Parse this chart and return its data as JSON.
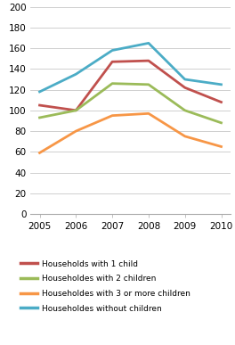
{
  "years": [
    2005,
    2006,
    2007,
    2008,
    2009,
    2010
  ],
  "series": {
    "Households with 1 child": {
      "values": [
        105,
        100,
        147,
        148,
        122,
        108
      ],
      "color": "#c0504d"
    },
    "Householdes with 2 children": {
      "values": [
        93,
        100,
        126,
        125,
        100,
        88
      ],
      "color": "#9bbb59"
    },
    "Householdes with 3 or more children": {
      "values": [
        59,
        80,
        95,
        97,
        75,
        65
      ],
      "color": "#f79646"
    },
    "Householdes without children": {
      "values": [
        118,
        135,
        158,
        165,
        130,
        125
      ],
      "color": "#4bacc6"
    }
  },
  "ylim": [
    0,
    200
  ],
  "yticks": [
    0,
    20,
    40,
    60,
    80,
    100,
    120,
    140,
    160,
    180,
    200
  ],
  "legend_order": [
    "Households with 1 child",
    "Householdes with 2 children",
    "Householdes with 3 or more children",
    "Householdes without children"
  ],
  "tick_fontsize": 7.5,
  "legend_fontsize": 6.5,
  "linewidth": 2.0,
  "grid_color": "#c8c8c8",
  "spine_color": "#aaaaaa"
}
